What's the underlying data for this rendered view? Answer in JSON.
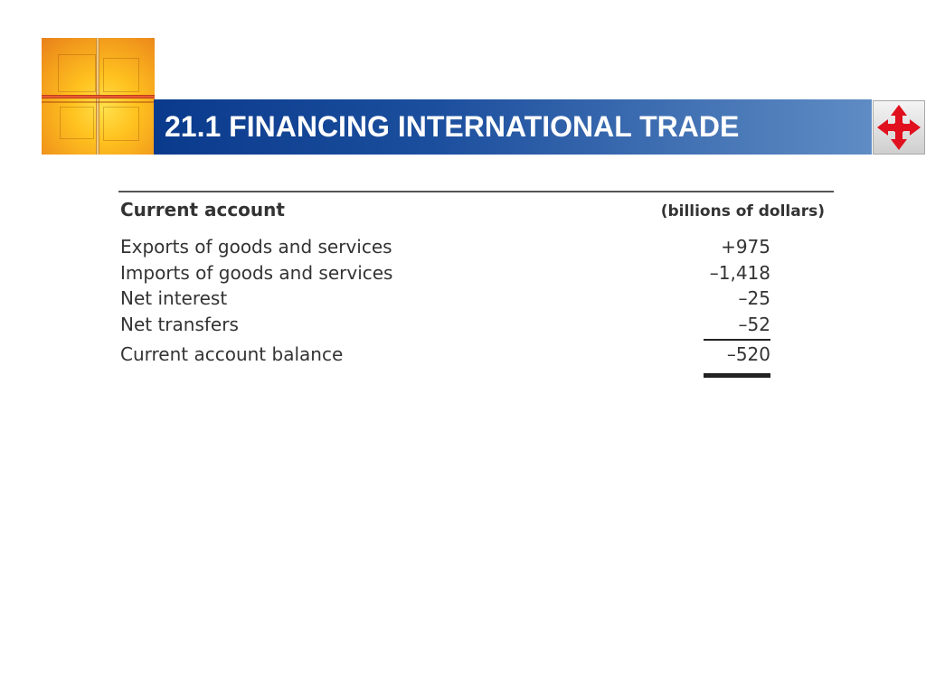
{
  "header": {
    "title": "21.1 FINANCING INTERNATIONAL TRADE",
    "nav_icon": "four-way-arrows-icon",
    "colors": {
      "title_bar_start": "#0a3a8c",
      "title_bar_end": "#5f8cc4",
      "logo_accent": "#ffc21f",
      "nav_arrows": "#e0101e"
    }
  },
  "table": {
    "heading": "Current account",
    "unit": "(billions of dollars)",
    "rows": [
      {
        "label": "Exports of goods and services",
        "value": "+975"
      },
      {
        "label": "Imports of goods and services",
        "value": "–1,418"
      },
      {
        "label": "Net interest",
        "value": "–25"
      },
      {
        "label": "Net transfers",
        "value": "–52"
      }
    ],
    "total": {
      "label": "Current account balance",
      "value": "–520"
    }
  }
}
